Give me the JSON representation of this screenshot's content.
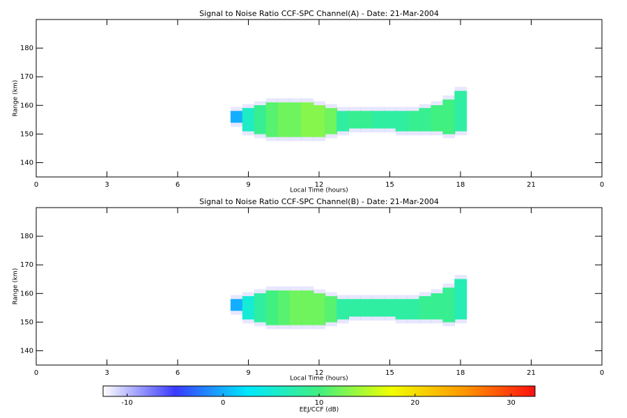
{
  "chart_data": [
    {
      "type": "heatmap",
      "title": "Signal to Noise Ratio CCF-SPC Channel(A) - Date: 21-Mar-2004",
      "xlabel": "Local Time (hours)",
      "ylabel": "Range (km)",
      "xlim": [
        0,
        24
      ],
      "xticks": [
        0,
        3,
        6,
        9,
        12,
        15,
        18,
        21,
        {
          "value": 24,
          "label": "0"
        }
      ],
      "ylim": [
        135,
        190
      ],
      "yticks": [
        140,
        150,
        160,
        170,
        180
      ],
      "x": [
        8.5,
        9.0,
        9.5,
        10.0,
        10.5,
        11.0,
        11.5,
        12.0,
        12.5,
        13.0,
        13.5,
        14.0,
        14.5,
        15.0,
        15.5,
        16.0,
        16.5,
        17.0,
        17.5,
        18.0
      ],
      "low": [
        154,
        151,
        150,
        149,
        149,
        149,
        149,
        149,
        150,
        151,
        152,
        152,
        152,
        152,
        151,
        151,
        151,
        151,
        150,
        151
      ],
      "high": [
        158,
        159,
        160,
        161,
        161,
        161,
        161,
        160,
        159,
        158,
        158,
        158,
        158,
        158,
        158,
        158,
        159,
        160,
        162,
        165
      ],
      "snr": [
        0,
        6,
        9,
        11,
        12,
        12,
        13,
        13,
        12,
        8,
        9,
        9,
        8,
        8,
        8,
        9,
        9,
        10,
        10,
        8
      ]
    },
    {
      "type": "heatmap",
      "title": "Signal to Noise Ratio CCF-SPC Channel(B) - Date: 21-Mar-2004",
      "xlabel": "Local Time (hours)",
      "ylabel": "Range (km)",
      "xlim": [
        0,
        24
      ],
      "xticks": [
        0,
        3,
        6,
        9,
        12,
        15,
        18,
        21,
        {
          "value": 24,
          "label": "0"
        }
      ],
      "ylim": [
        135,
        190
      ],
      "yticks": [
        140,
        150,
        160,
        170,
        180
      ],
      "x": [
        8.5,
        9.0,
        9.5,
        10.0,
        10.5,
        11.0,
        11.5,
        12.0,
        12.5,
        13.0,
        13.5,
        14.0,
        14.5,
        15.0,
        15.5,
        16.0,
        16.5,
        17.0,
        17.5,
        18.0
      ],
      "low": [
        154,
        151,
        150,
        149,
        149,
        149,
        149,
        149,
        150,
        151,
        152,
        152,
        152,
        152,
        151,
        151,
        151,
        151,
        150,
        151
      ],
      "high": [
        158,
        159,
        160,
        161,
        161,
        161,
        161,
        160,
        159,
        158,
        158,
        158,
        158,
        158,
        158,
        158,
        159,
        160,
        162,
        165
      ],
      "snr": [
        0,
        5,
        8,
        10,
        11,
        12,
        12,
        12,
        11,
        8,
        8,
        8,
        8,
        8,
        8,
        8,
        9,
        9,
        9,
        7
      ]
    },
    {
      "type": "colorbar",
      "xlabel": "EEJ/CCF (dB)",
      "xlim": [
        -12.5,
        32.5
      ],
      "xticks": [
        -10,
        0,
        10,
        20,
        30
      ],
      "colormap": [
        "#ffffff",
        "#3a3aff",
        "#00e8ff",
        "#40f080",
        "#f0ff00",
        "#ff9900",
        "#ff1010"
      ]
    }
  ]
}
